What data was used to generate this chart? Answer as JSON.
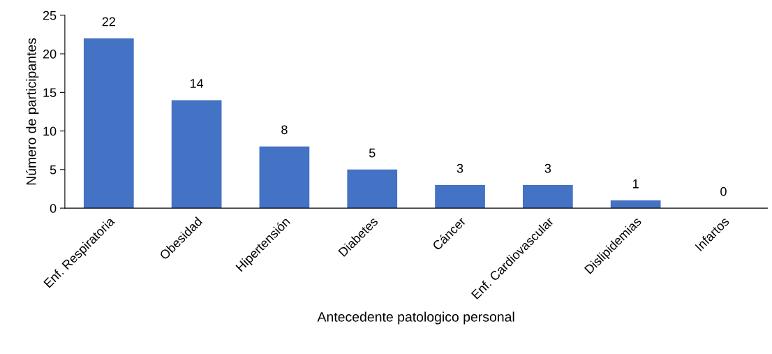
{
  "chart_data": {
    "type": "bar",
    "xlabel": "Antecedente patologico personal",
    "ylabel": "Número de participantes",
    "categories": [
      "Enf. Respiratoria",
      "Obesidad",
      "Hipertensión",
      "Diabetes",
      "Cáncer",
      "Enf. Cardiovascular",
      "Dislipidemias",
      "Infartos"
    ],
    "values": [
      22,
      14,
      8,
      5,
      3,
      3,
      1,
      0
    ],
    "color": "#4472c4",
    "ylim": [
      0,
      25
    ],
    "yticks": [
      0,
      5,
      10,
      15,
      20,
      25
    ],
    "grid": false,
    "data_labels": true
  }
}
